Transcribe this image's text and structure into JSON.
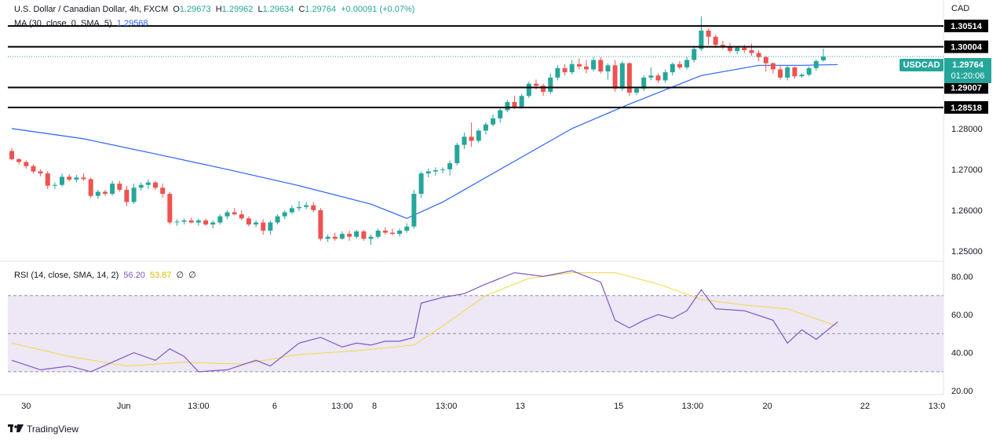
{
  "legend": {
    "title": "U.S. Dollar / Canadian Dollar, 4h, FXCM",
    "o_label": "O",
    "o": "1.29673",
    "h_label": "H",
    "h": "1.29962",
    "l_label": "L",
    "l": "1.29634",
    "c_label": "C",
    "c": "1.29764",
    "change": "+0.00091 (+0.07%)",
    "ma_label": "MA (30, close, 0, SMA, 5)",
    "ma_value": "1.29568",
    "rsi_label": "RSI (14, close, SMA, 14, 2)",
    "rsi_value": "56.20",
    "rsi_sma_value": "53.87",
    "rsi_extra1": "∅",
    "rsi_extra2": "∅"
  },
  "currency": "CAD",
  "symbol_tag": "USDCAD",
  "last_price": "1.29764",
  "countdown": "01:20:06",
  "branding": "TradingView",
  "colors": {
    "up": "#26a69a",
    "down": "#ef5350",
    "ma": "#2962ff",
    "rsi": "#7e57c2",
    "rsi_sma": "#f5d742",
    "rsi_band": "#ede7f6"
  },
  "chart_data": [
    {
      "type": "candlestick",
      "title": "U.S. Dollar / Canadian Dollar, 4h, FXCM",
      "x_ticks": [
        "30",
        "Jun",
        "13:00",
        "6",
        "13:00",
        "8",
        "13:00",
        "13",
        "15",
        "13:00",
        "20",
        "22",
        "13:0"
      ],
      "y_ticks": [
        "1.25000",
        "1.26000",
        "1.27000",
        "1.28000"
      ],
      "ylim": [
        1.2475,
        1.3115
      ],
      "horizontal_levels": [
        "1.30514",
        "1.30004",
        "1.29007",
        "1.28518"
      ],
      "last_price": 1.29764,
      "candles": [
        [
          1.2745,
          1.2752,
          1.2722,
          1.2725
        ],
        [
          1.2725,
          1.2728,
          1.2712,
          1.2718
        ],
        [
          1.2718,
          1.2722,
          1.2702,
          1.2708
        ],
        [
          1.2708,
          1.2712,
          1.269,
          1.2695
        ],
        [
          1.2695,
          1.27,
          1.2683,
          1.269
        ],
        [
          1.269,
          1.2696,
          1.2652,
          1.266
        ],
        [
          1.266,
          1.2668,
          1.2652,
          1.2662
        ],
        [
          1.2662,
          1.269,
          1.2658,
          1.2682
        ],
        [
          1.2682,
          1.2688,
          1.267,
          1.2675
        ],
        [
          1.2675,
          1.2686,
          1.2668,
          1.268
        ],
        [
          1.268,
          1.269,
          1.2672,
          1.2676
        ],
        [
          1.2676,
          1.268,
          1.263,
          1.2635
        ],
        [
          1.2635,
          1.265,
          1.2628,
          1.2645
        ],
        [
          1.2645,
          1.265,
          1.2635,
          1.264
        ],
        [
          1.264,
          1.2672,
          1.2636,
          1.2665
        ],
        [
          1.2665,
          1.2672,
          1.2645,
          1.265
        ],
        [
          1.265,
          1.266,
          1.261,
          1.262
        ],
        [
          1.262,
          1.2665,
          1.2615,
          1.2655
        ],
        [
          1.2655,
          1.2668,
          1.2648,
          1.2662
        ],
        [
          1.2662,
          1.2675,
          1.2652,
          1.2668
        ],
        [
          1.2668,
          1.2672,
          1.265,
          1.2655
        ],
        [
          1.2655,
          1.2665,
          1.263,
          1.264
        ],
        [
          1.264,
          1.2645,
          1.2565,
          1.257
        ],
        [
          1.257,
          1.2578,
          1.2562,
          1.2572
        ],
        [
          1.2572,
          1.258,
          1.2565,
          1.2575
        ],
        [
          1.2575,
          1.2582,
          1.2568,
          1.257
        ],
        [
          1.257,
          1.258,
          1.2562,
          1.2575
        ],
        [
          1.2575,
          1.258,
          1.2562,
          1.2565
        ],
        [
          1.2565,
          1.2575,
          1.2555,
          1.257
        ],
        [
          1.257,
          1.259,
          1.2565,
          1.2585
        ],
        [
          1.2585,
          1.26,
          1.2578,
          1.2595
        ],
        [
          1.2595,
          1.2605,
          1.2588,
          1.259
        ],
        [
          1.259,
          1.26,
          1.2575,
          1.258
        ],
        [
          1.258,
          1.2585,
          1.256,
          1.2565
        ],
        [
          1.2565,
          1.2575,
          1.2558,
          1.257
        ],
        [
          1.257,
          1.2578,
          1.254,
          1.255
        ],
        [
          1.255,
          1.2575,
          1.254,
          1.257
        ],
        [
          1.257,
          1.259,
          1.2565,
          1.2585
        ],
        [
          1.2585,
          1.26,
          1.2578,
          1.2595
        ],
        [
          1.2595,
          1.2612,
          1.259,
          1.2605
        ],
        [
          1.2605,
          1.2622,
          1.2598,
          1.2608
        ],
        [
          1.2608,
          1.262,
          1.2602,
          1.2612
        ],
        [
          1.2612,
          1.262,
          1.2595,
          1.26
        ],
        [
          1.26,
          1.2605,
          1.2525,
          1.253
        ],
        [
          1.253,
          1.254,
          1.2522,
          1.2535
        ],
        [
          1.2535,
          1.2545,
          1.2525,
          1.253
        ],
        [
          1.253,
          1.2548,
          1.2528,
          1.2542
        ],
        [
          1.2542,
          1.255,
          1.2525,
          1.2535
        ],
        [
          1.2535,
          1.2552,
          1.253,
          1.2548
        ],
        [
          1.2548,
          1.2552,
          1.2525,
          1.253
        ],
        [
          1.253,
          1.254,
          1.2515,
          1.2535
        ],
        [
          1.2535,
          1.2555,
          1.253,
          1.255
        ],
        [
          1.255,
          1.2558,
          1.254,
          1.2545
        ],
        [
          1.2545,
          1.2555,
          1.2538,
          1.2542
        ],
        [
          1.2542,
          1.2555,
          1.2535,
          1.255
        ],
        [
          1.255,
          1.2568,
          1.2545,
          1.256
        ],
        [
          1.256,
          1.265,
          1.2555,
          1.264
        ],
        [
          1.264,
          1.2695,
          1.263,
          1.269
        ],
        [
          1.269,
          1.2702,
          1.268,
          1.2695
        ],
        [
          1.2695,
          1.2705,
          1.2685,
          1.2698
        ],
        [
          1.2698,
          1.2705,
          1.269,
          1.27
        ],
        [
          1.27,
          1.2722,
          1.2685,
          1.2715
        ],
        [
          1.2715,
          1.2765,
          1.271,
          1.276
        ],
        [
          1.276,
          1.279,
          1.275,
          1.278
        ],
        [
          1.278,
          1.2815,
          1.2755,
          1.277
        ],
        [
          1.277,
          1.28,
          1.2765,
          1.2795
        ],
        [
          1.2795,
          1.2815,
          1.2785,
          1.281
        ],
        [
          1.281,
          1.2835,
          1.2805,
          1.2825
        ],
        [
          1.2825,
          1.285,
          1.2815,
          1.2845
        ],
        [
          1.2845,
          1.287,
          1.284,
          1.2865
        ],
        [
          1.2865,
          1.288,
          1.2848,
          1.2852
        ],
        [
          1.2852,
          1.2885,
          1.2848,
          1.288
        ],
        [
          1.288,
          1.2915,
          1.2875,
          1.291
        ],
        [
          1.291,
          1.292,
          1.2895,
          1.2905
        ],
        [
          1.2905,
          1.291,
          1.288,
          1.289
        ],
        [
          1.289,
          1.2935,
          1.2885,
          1.2925
        ],
        [
          1.2925,
          1.2955,
          1.2918,
          1.2948
        ],
        [
          1.2948,
          1.2958,
          1.293,
          1.2938
        ],
        [
          1.2938,
          1.2968,
          1.2932,
          1.2958
        ],
        [
          1.2958,
          1.2972,
          1.2945,
          1.2952
        ],
        [
          1.2952,
          1.2968,
          1.2935,
          1.2945
        ],
        [
          1.2945,
          1.2975,
          1.294,
          1.2968
        ],
        [
          1.2968,
          1.2975,
          1.2935,
          1.294
        ],
        [
          1.294,
          1.296,
          1.292,
          1.2955
        ],
        [
          1.2955,
          1.2968,
          1.289,
          1.2898
        ],
        [
          1.2898,
          1.2965,
          1.2892,
          1.296
        ],
        [
          1.296,
          1.2962,
          1.288,
          1.2888
        ],
        [
          1.2888,
          1.2902,
          1.2882,
          1.2898
        ],
        [
          1.2898,
          1.293,
          1.2892,
          1.2925
        ],
        [
          1.2925,
          1.295,
          1.2918,
          1.293
        ],
        [
          1.293,
          1.2935,
          1.2912,
          1.2918
        ],
        [
          1.2918,
          1.2945,
          1.2912,
          1.2938
        ],
        [
          1.2938,
          1.2962,
          1.293,
          1.2958
        ],
        [
          1.2958,
          1.2965,
          1.2945,
          1.295
        ],
        [
          1.295,
          1.2975,
          1.2945,
          1.2968
        ],
        [
          1.2968,
          1.3002,
          1.2962,
          1.2995
        ],
        [
          1.2995,
          1.3075,
          1.299,
          1.304
        ],
        [
          1.304,
          1.3045,
          1.3005,
          1.3025
        ],
        [
          1.3025,
          1.303,
          1.2998,
          1.3005
        ],
        [
          1.3005,
          1.3015,
          1.2995,
          1.3
        ],
        [
          1.3,
          1.301,
          1.2985,
          1.299
        ],
        [
          1.299,
          1.3002,
          1.2982,
          1.2998
        ],
        [
          1.2998,
          1.3005,
          1.2985,
          1.2992
        ],
        [
          1.2992,
          1.3008,
          1.2978,
          1.2985
        ],
        [
          1.2985,
          1.2992,
          1.2965,
          1.2975
        ],
        [
          1.2975,
          1.2978,
          1.294,
          1.296
        ],
        [
          1.296,
          1.2962,
          1.2935,
          1.2945
        ],
        [
          1.2945,
          1.2955,
          1.292,
          1.2925
        ],
        [
          1.2925,
          1.2955,
          1.2918,
          1.295
        ],
        [
          1.295,
          1.2952,
          1.2922,
          1.2928
        ],
        [
          1.2928,
          1.2935,
          1.2925,
          1.2932
        ],
        [
          1.2932,
          1.2952,
          1.2928,
          1.2948
        ],
        [
          1.2948,
          1.297,
          1.2942,
          1.2965
        ],
        [
          1.29673,
          1.29962,
          1.29634,
          1.29764
        ]
      ],
      "ma": {
        "name": "MA (30, close, 0, SMA, 5)",
        "points": [
          [
            0,
            1.28
          ],
          [
            10,
            1.2775
          ],
          [
            20,
            1.2738
          ],
          [
            30,
            1.27
          ],
          [
            40,
            1.266
          ],
          [
            50,
            1.2615
          ],
          [
            55,
            1.258
          ],
          [
            60,
            1.262
          ],
          [
            68,
            1.27
          ],
          [
            78,
            1.28
          ],
          [
            86,
            1.286
          ],
          [
            96,
            1.293
          ],
          [
            104,
            1.2955
          ],
          [
            110,
            1.2955
          ],
          [
            115,
            1.29568
          ]
        ]
      }
    },
    {
      "type": "line",
      "title": "RSI (14, close, SMA, 14, 2)",
      "y_ticks": [
        "20.00",
        "40.00",
        "60.00",
        "80.00"
      ],
      "ylim": [
        18,
        88
      ],
      "bands": [
        30,
        50,
        70
      ],
      "series": [
        {
          "name": "RSI",
          "points": [
            [
              0,
              36
            ],
            [
              4,
              31
            ],
            [
              8,
              33
            ],
            [
              11,
              30
            ],
            [
              14,
              35
            ],
            [
              17,
              40
            ],
            [
              20,
              36
            ],
            [
              22,
              42
            ],
            [
              24,
              38
            ],
            [
              26,
              30
            ],
            [
              30,
              31
            ],
            [
              34,
              36
            ],
            [
              36,
              33
            ],
            [
              40,
              45
            ],
            [
              43,
              48
            ],
            [
              46,
              43
            ],
            [
              48,
              45
            ],
            [
              50,
              44
            ],
            [
              52,
              46
            ],
            [
              54,
              46
            ],
            [
              56,
              48
            ],
            [
              57,
              66
            ],
            [
              60,
              69
            ],
            [
              63,
              71
            ],
            [
              66,
              76
            ],
            [
              70,
              82
            ],
            [
              74,
              80
            ],
            [
              78,
              83
            ],
            [
              82,
              77
            ],
            [
              84,
              57
            ],
            [
              86,
              53
            ],
            [
              88,
              57
            ],
            [
              90,
              60
            ],
            [
              92,
              58
            ],
            [
              94,
              62
            ],
            [
              96,
              73
            ],
            [
              98,
              63
            ],
            [
              102,
              62
            ],
            [
              106,
              57
            ],
            [
              108,
              45
            ],
            [
              110,
              52
            ],
            [
              112,
              47
            ],
            [
              115,
              56.2
            ]
          ]
        },
        {
          "name": "RSI SMA",
          "points": [
            [
              0,
              45
            ],
            [
              8,
              38
            ],
            [
              16,
              33
            ],
            [
              24,
              35
            ],
            [
              32,
              34
            ],
            [
              40,
              39
            ],
            [
              48,
              41
            ],
            [
              56,
              44
            ],
            [
              60,
              54
            ],
            [
              66,
              70
            ],
            [
              72,
              79
            ],
            [
              78,
              82
            ],
            [
              84,
              82
            ],
            [
              90,
              76
            ],
            [
              96,
              68
            ],
            [
              102,
              65
            ],
            [
              108,
              63
            ],
            [
              115,
              53.87
            ]
          ]
        }
      ]
    }
  ]
}
